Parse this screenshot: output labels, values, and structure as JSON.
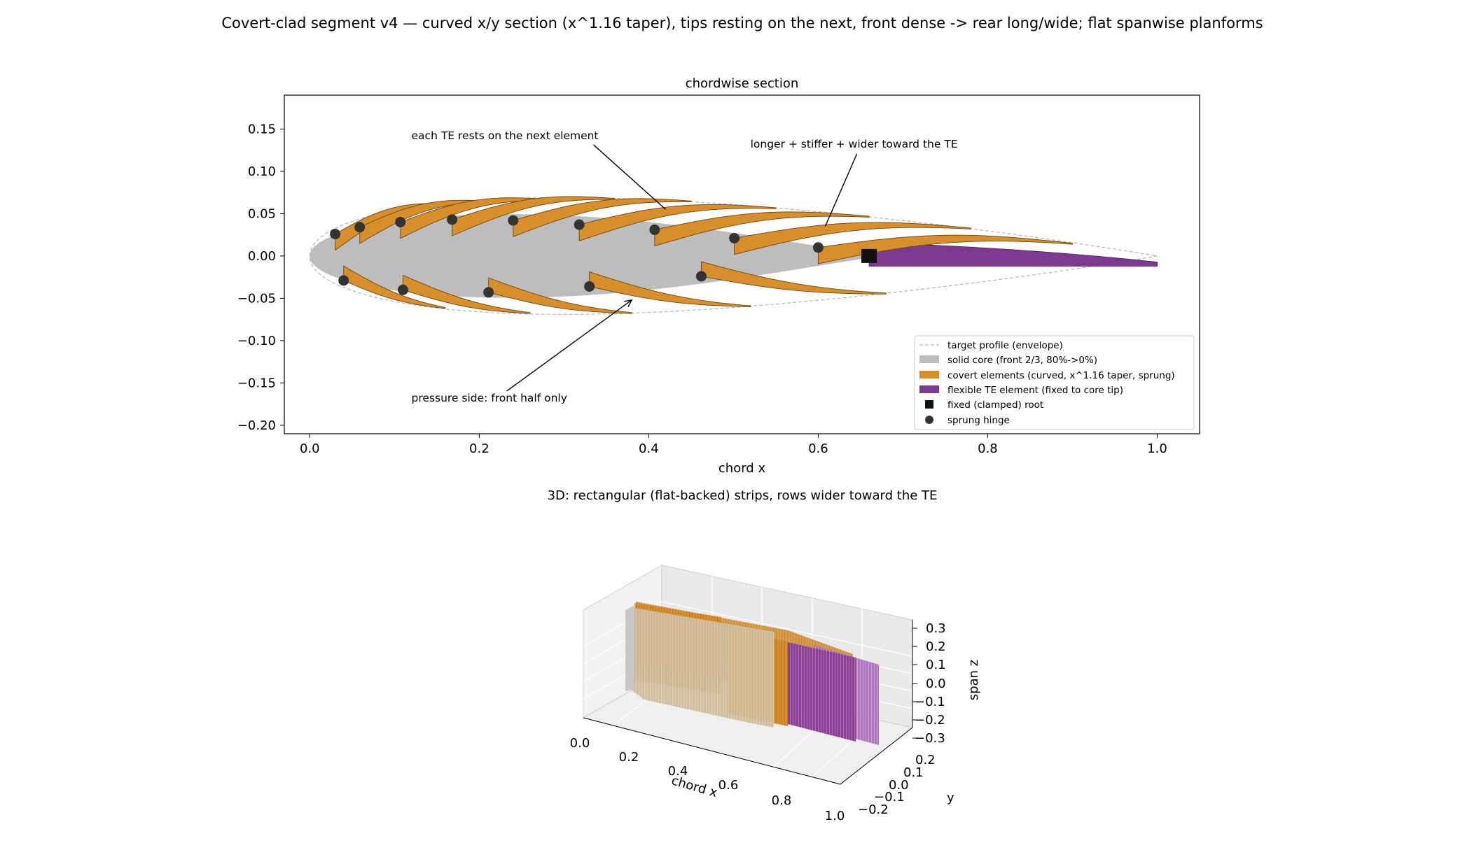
{
  "suptitle": "Covert-clad segment v4 — curved x/y section (x^1.16 taper), tips resting on the next, front dense -> rear long/wide; flat spanwise planforms",
  "chart_data": [
    {
      "type": "scatter",
      "title": "chordwise section",
      "xlabel": "chord x",
      "ylabel": "",
      "xlim": [
        -0.03,
        1.05
      ],
      "ylim": [
        -0.21,
        0.19
      ],
      "xticks": [
        "0.0",
        "0.2",
        "0.4",
        "0.6",
        "0.8",
        "1.0"
      ],
      "yticks": [
        "0.15",
        "0.10",
        "0.05",
        "0.00",
        "−0.05",
        "−0.10",
        "−0.15",
        "−0.20"
      ],
      "grid": false,
      "legend_position": "lower right",
      "colors": {
        "envelope": "#b4b4b4",
        "core": "#bdbdbd",
        "covert": "#d68f2b",
        "covert_edge": "#6b4510",
        "te": "#7b3a8f",
        "clamp": "#111111",
        "hinge": "#333333"
      },
      "series": [
        {
          "name": "target profile (envelope)"
        },
        {
          "name": "solid core (front 2/3, 80%->0%)"
        },
        {
          "name": "covert elements (curved, x^1.16 taper, sprung)"
        },
        {
          "name": "flexible TE element (fixed to core tip)"
        },
        {
          "name": "fixed (clamped) root"
        },
        {
          "name": "sprung hinge"
        }
      ],
      "upper_hinges": [
        [
          0.03,
          0.026
        ],
        [
          0.059,
          0.034
        ],
        [
          0.107,
          0.04
        ],
        [
          0.168,
          0.043
        ],
        [
          0.24,
          0.042
        ],
        [
          0.318,
          0.037
        ],
        [
          0.407,
          0.031
        ],
        [
          0.501,
          0.021
        ],
        [
          0.6,
          0.01
        ]
      ],
      "upper_element_tips": [
        [
          0.16,
          0.062
        ],
        [
          0.21,
          0.065
        ],
        [
          0.28,
          0.067
        ],
        [
          0.36,
          0.068
        ],
        [
          0.45,
          0.065
        ],
        [
          0.55,
          0.057
        ],
        [
          0.66,
          0.047
        ],
        [
          0.78,
          0.033
        ],
        [
          0.9,
          0.015
        ]
      ],
      "lower_hinges": [
        [
          0.04,
          -0.029
        ],
        [
          0.11,
          -0.04
        ],
        [
          0.211,
          -0.043
        ],
        [
          0.33,
          -0.036
        ],
        [
          0.462,
          -0.024
        ]
      ],
      "lower_element_tips": [
        [
          0.16,
          -0.062
        ],
        [
          0.26,
          -0.068
        ],
        [
          0.38,
          -0.068
        ],
        [
          0.52,
          -0.06
        ],
        [
          0.68,
          -0.045
        ]
      ],
      "clamped_root": [
        0.66,
        0.0
      ],
      "te_element": {
        "x_start": 0.66,
        "x_end": 1.0
      },
      "annotations": [
        {
          "text": "each TE rests on the next element",
          "xy": [
            0.42,
            0.055
          ],
          "text_at": [
            0.12,
            0.138
          ]
        },
        {
          "text": "longer + stiffer + wider toward the TE",
          "xy": [
            0.6,
            0.035
          ],
          "text_at": [
            0.52,
            0.128
          ]
        },
        {
          "text": "pressure side: front half only",
          "xy": [
            0.38,
            -0.052
          ],
          "text_at": [
            0.12,
            -0.172
          ]
        }
      ]
    },
    {
      "type": "3d-surface",
      "title": "3D: rectangular (flat-backed) strips, rows wider toward the TE",
      "xlabel": "chord x",
      "ylabel": "y",
      "zlabel": "span z",
      "xlim": [
        0.0,
        1.0
      ],
      "ylim": [
        -0.2,
        0.2
      ],
      "zlim": [
        -0.3,
        0.3
      ],
      "xticks": [
        "0.0",
        "0.2",
        "0.4",
        "0.6",
        "0.8",
        "1.0"
      ],
      "yticks": [
        "−0.2",
        "−0.1",
        "0.0",
        "0.1",
        "0.2"
      ],
      "zticks": [
        "0.3",
        "0.2",
        "0.1",
        "0.0",
        "−0.1",
        "−0.2",
        "−0.3"
      ]
    }
  ]
}
